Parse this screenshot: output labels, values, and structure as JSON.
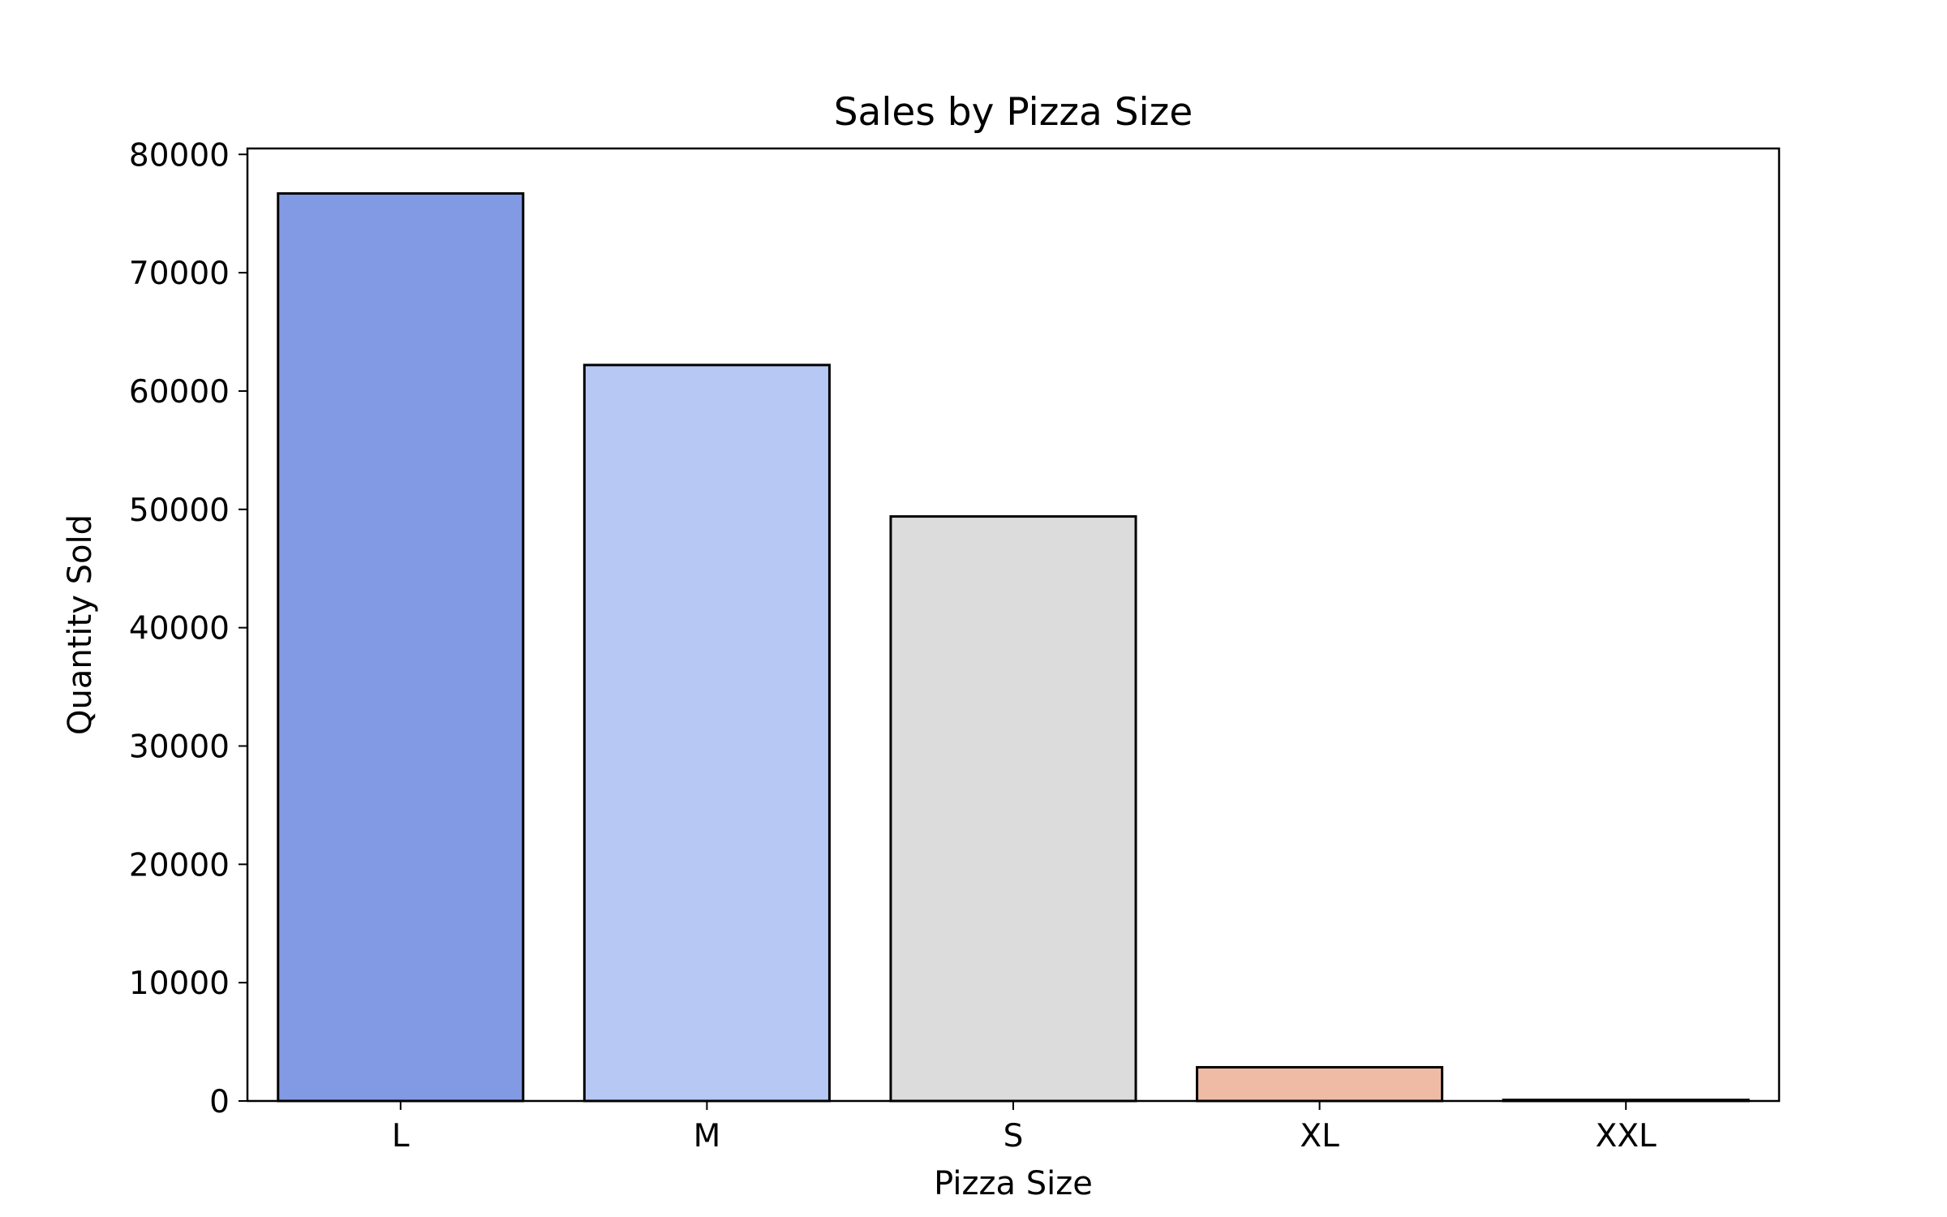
{
  "chart_data": {
    "type": "bar",
    "title": "Sales by Pizza Size",
    "xlabel": "Pizza Size",
    "ylabel": "Quantity Sold",
    "categories": [
      "L",
      "M",
      "S",
      "XL",
      "XXL"
    ],
    "values": [
      76700,
      62200,
      49400,
      2850,
      90
    ],
    "colors": [
      "#8299e3",
      "#b6c8f3",
      "#dcdcdc",
      "#efbba5",
      "#c64e43"
    ],
    "edge_color": "#000000",
    "ylim": [
      0,
      80500
    ],
    "yticks": [
      0,
      10000,
      20000,
      30000,
      40000,
      50000,
      60000,
      70000,
      80000
    ],
    "ytick_labels": [
      "0",
      "10000",
      "20000",
      "30000",
      "40000",
      "50000",
      "60000",
      "70000",
      "80000"
    ],
    "grid": false,
    "legend": "none"
  }
}
